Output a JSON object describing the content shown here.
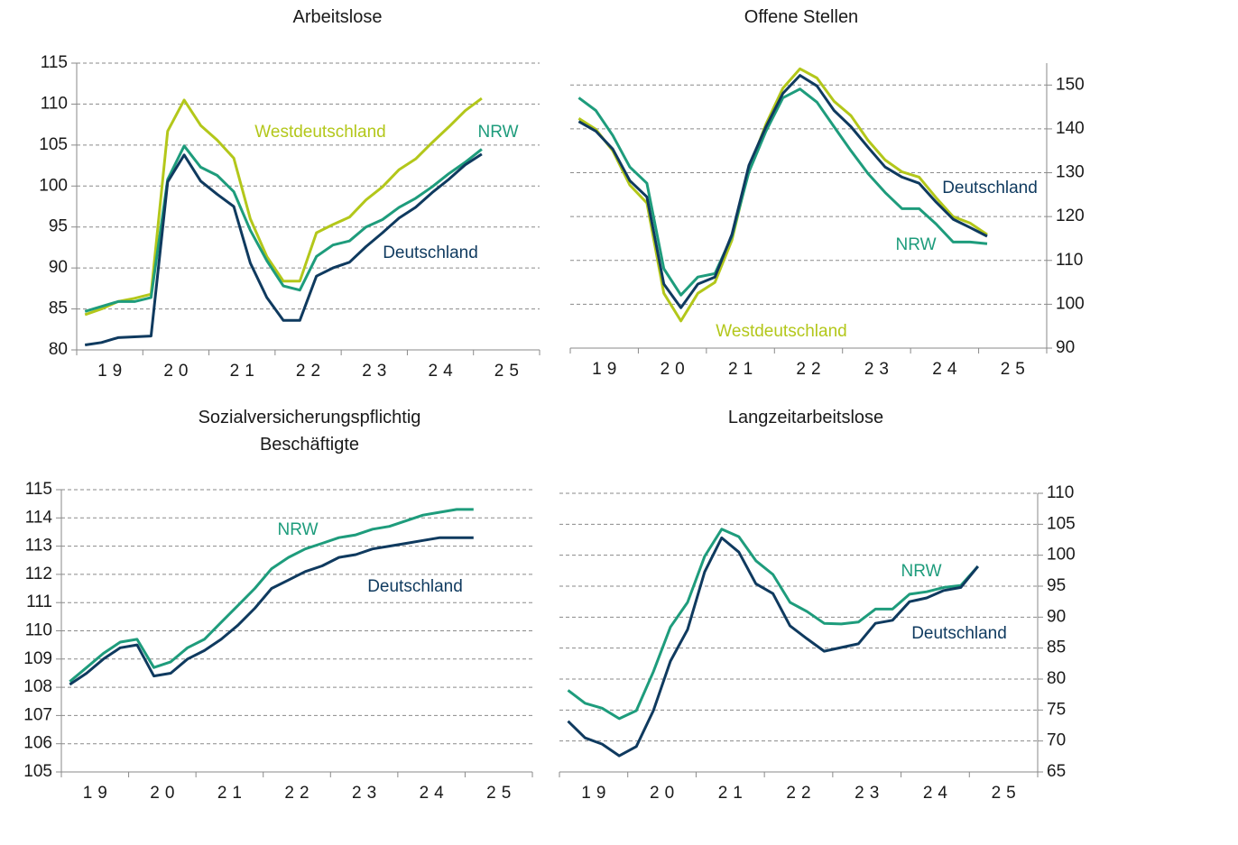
{
  "chart_data": [
    {
      "type": "line",
      "title": "Arbeitslose",
      "x": [
        18.625,
        18.875,
        19.125,
        19.375,
        19.625,
        19.875,
        20.125,
        20.375,
        20.625,
        20.875,
        21.125,
        21.375,
        21.625,
        21.875,
        22.125,
        22.375,
        22.625,
        22.875,
        23.125,
        23.375,
        23.625,
        23.875,
        24.125,
        24.375,
        24.625
      ],
      "xlim": [
        18.5,
        25.5
      ],
      "xticks": [
        19,
        20,
        21,
        22,
        23,
        24,
        25
      ],
      "ylim": [
        80,
        115
      ],
      "yticks": [
        80,
        85,
        90,
        95,
        100,
        105,
        110,
        115
      ],
      "yaxis": "left",
      "grid": true,
      "series": [
        {
          "name": "Westdeutschland",
          "color": "#b3c71a",
          "values": [
            84.3,
            85.0,
            85.9,
            86.3,
            86.8,
            106.7,
            110.5,
            107.4,
            105.6,
            103.4,
            96.0,
            91.4,
            88.4,
            88.4,
            94.3,
            95.3,
            96.2,
            98.3,
            99.9,
            102.0,
            103.3,
            105.3,
            107.2,
            109.2,
            110.7
          ]
        },
        {
          "name": "NRW",
          "color": "#1e9c7c",
          "values": [
            84.7,
            85.3,
            85.9,
            85.9,
            86.4,
            100.8,
            104.9,
            102.3,
            101.3,
            99.3,
            94.6,
            90.9,
            87.8,
            87.3,
            91.4,
            92.8,
            93.3,
            95.0,
            95.9,
            97.4,
            98.5,
            99.9,
            101.5,
            102.9,
            104.5
          ]
        },
        {
          "name": "Deutschland",
          "color": "#0f3a5f",
          "values": [
            80.6,
            80.9,
            81.5,
            81.6,
            81.7,
            100.5,
            103.8,
            100.6,
            99.0,
            97.5,
            90.6,
            86.4,
            83.6,
            83.6,
            89.0,
            90.0,
            90.7,
            92.6,
            94.3,
            96.1,
            97.4,
            99.2,
            100.8,
            102.6,
            103.9
          ]
        }
      ]
    },
    {
      "type": "line",
      "title": "Offene Stellen",
      "x": [
        18.625,
        18.875,
        19.125,
        19.375,
        19.625,
        19.875,
        20.125,
        20.375,
        20.625,
        20.875,
        21.125,
        21.375,
        21.625,
        21.875,
        22.125,
        22.375,
        22.625,
        22.875,
        23.125,
        23.375,
        23.625,
        23.875,
        24.125,
        24.375,
        24.625
      ],
      "xlim": [
        18.5,
        25.5
      ],
      "xticks": [
        19,
        20,
        21,
        22,
        23,
        24,
        25
      ],
      "ylim": [
        90,
        155
      ],
      "yticks": [
        90,
        100,
        110,
        120,
        130,
        140,
        150
      ],
      "yaxis": "right",
      "grid": true,
      "series": [
        {
          "name": "Westdeutschland",
          "color": "#b3c71a",
          "values": [
            142.4,
            139.9,
            135.0,
            127.2,
            123.1,
            102.5,
            96.2,
            102.5,
            105.0,
            114.6,
            130.9,
            141.1,
            149.3,
            153.7,
            151.6,
            146.3,
            143.0,
            137.4,
            132.9,
            130.2,
            129.0,
            124.3,
            120.0,
            118.5,
            115.9
          ]
        },
        {
          "name": "NRW",
          "color": "#1e9c7c",
          "values": [
            147.1,
            144.2,
            138.5,
            131.3,
            127.6,
            108.1,
            102.1,
            106.2,
            107.0,
            115.5,
            130.2,
            139.5,
            147.1,
            149.1,
            146.1,
            140.5,
            135.0,
            129.8,
            125.5,
            121.8,
            121.8,
            118.3,
            114.2,
            114.2,
            113.8
          ]
        },
        {
          "name": "Deutschland",
          "color": "#0f3a5f",
          "values": [
            141.7,
            139.5,
            135.4,
            128.2,
            124.5,
            104.6,
            99.2,
            104.6,
            106.2,
            115.9,
            131.7,
            140.5,
            148.1,
            152.2,
            149.8,
            144.2,
            140.5,
            135.8,
            131.3,
            129.0,
            127.6,
            123.3,
            119.4,
            117.5,
            115.5
          ]
        }
      ]
    },
    {
      "type": "line",
      "title": "Sozialversicherungspflichtig Beschäftigte",
      "x": [
        18.625,
        18.875,
        19.125,
        19.375,
        19.625,
        19.875,
        20.125,
        20.375,
        20.625,
        20.875,
        21.125,
        21.375,
        21.625,
        21.875,
        22.125,
        22.375,
        22.625,
        22.875,
        23.125,
        23.375,
        23.625,
        23.875,
        24.125,
        24.375,
        24.625
      ],
      "xlim": [
        18.5,
        25.5
      ],
      "xticks": [
        19,
        20,
        21,
        22,
        23,
        24,
        25
      ],
      "ylim": [
        105,
        115
      ],
      "yticks": [
        105,
        106,
        107,
        108,
        109,
        110,
        111,
        112,
        113,
        114,
        115
      ],
      "yaxis": "left",
      "grid": true,
      "series": [
        {
          "name": "NRW",
          "color": "#1e9c7c",
          "values": [
            108.2,
            108.7,
            109.2,
            109.6,
            109.7,
            108.7,
            108.9,
            109.4,
            109.7,
            110.3,
            110.9,
            111.5,
            112.2,
            112.6,
            112.9,
            113.1,
            113.3,
            113.4,
            113.6,
            113.7,
            113.9,
            114.1,
            114.2,
            114.3,
            114.3
          ]
        },
        {
          "name": "Deutschland",
          "color": "#0f3a5f",
          "values": [
            108.1,
            108.5,
            109.0,
            109.4,
            109.5,
            108.4,
            108.5,
            109.0,
            109.3,
            109.7,
            110.2,
            110.8,
            111.5,
            111.8,
            112.1,
            112.3,
            112.6,
            112.7,
            112.9,
            113.0,
            113.1,
            113.2,
            113.3,
            113.3,
            113.3
          ]
        }
      ]
    },
    {
      "type": "line",
      "title": "Langzeitarbeitslose",
      "x": [
        18.625,
        18.875,
        19.125,
        19.375,
        19.625,
        19.875,
        20.125,
        20.375,
        20.625,
        20.875,
        21.125,
        21.375,
        21.625,
        21.875,
        22.125,
        22.375,
        22.625,
        22.875,
        23.125,
        23.375,
        23.625,
        23.875,
        24.125,
        24.375,
        24.625
      ],
      "xlim": [
        18.5,
        25.5
      ],
      "xticks": [
        19,
        20,
        21,
        22,
        23,
        24,
        25
      ],
      "ylim": [
        65,
        110
      ],
      "yticks": [
        65,
        70,
        75,
        80,
        85,
        90,
        95,
        100,
        105,
        110
      ],
      "yaxis": "right",
      "grid": true,
      "series": [
        {
          "name": "NRW",
          "color": "#1e9c7c",
          "values": [
            78.2,
            76.1,
            75.3,
            73.6,
            74.9,
            81.2,
            88.4,
            92.4,
            99.8,
            104.2,
            103.0,
            99.1,
            96.9,
            92.4,
            90.9,
            89.0,
            88.9,
            89.2,
            91.3,
            91.3,
            93.7,
            94.1,
            94.8,
            95.1,
            98.2
          ]
        },
        {
          "name": "Deutschland",
          "color": "#0f3a5f",
          "values": [
            73.2,
            70.5,
            69.5,
            67.6,
            69.1,
            74.9,
            82.9,
            88.0,
            97.3,
            102.8,
            100.5,
            95.4,
            93.8,
            88.6,
            86.5,
            84.5,
            85.1,
            85.7,
            89.0,
            89.5,
            92.5,
            93.1,
            94.3,
            94.8,
            98.2
          ]
        }
      ]
    }
  ]
}
